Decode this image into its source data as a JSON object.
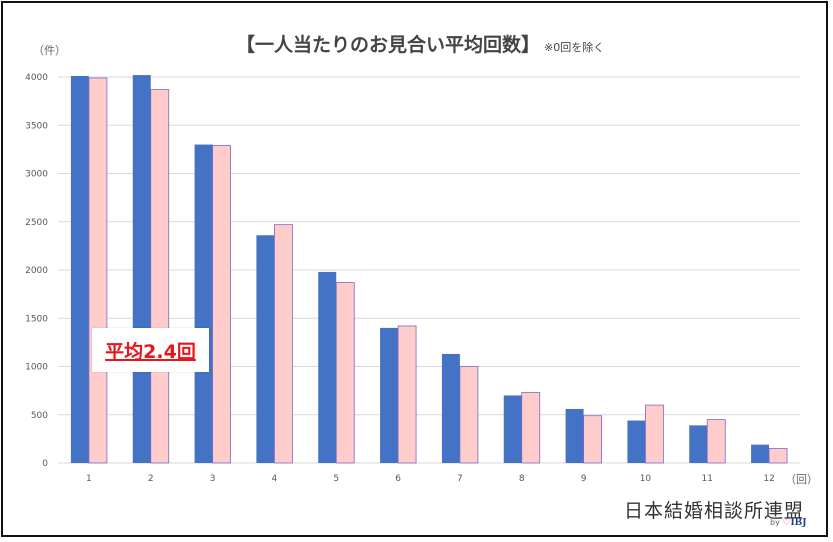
{
  "title": "【一人当たりのお見合い平均回数】",
  "title_note": "※0回を除く",
  "y_unit": "（件）",
  "x_unit": "（回）",
  "average_label": "平均2.4回",
  "brand": {
    "name": "日本結婚相談所連盟",
    "sub_by": "by",
    "sub_heart": "♡",
    "sub_logo": "IBJ"
  },
  "colors": {
    "series1": "#4472c4",
    "series2": "#ffcccc",
    "series2_stroke": "#7b68c8",
    "grid": "#d9d9d9",
    "axis_text": "#595959"
  },
  "chart_data": {
    "type": "bar",
    "categories": [
      "1",
      "2",
      "3",
      "4",
      "5",
      "6",
      "7",
      "8",
      "9",
      "10",
      "11",
      "12"
    ],
    "series": [
      {
        "values": [
          4010,
          4020,
          3300,
          2360,
          1980,
          1400,
          1130,
          700,
          560,
          440,
          390,
          190
        ]
      },
      {
        "values": [
          3990,
          3870,
          3290,
          2470,
          1870,
          1420,
          1000,
          730,
          490,
          600,
          450,
          150
        ]
      }
    ],
    "yticks": [
      0,
      500,
      1000,
      1500,
      2000,
      2500,
      3000,
      3500,
      4000
    ],
    "ylim": [
      0,
      4000
    ],
    "grid": true,
    "legend": "none"
  }
}
